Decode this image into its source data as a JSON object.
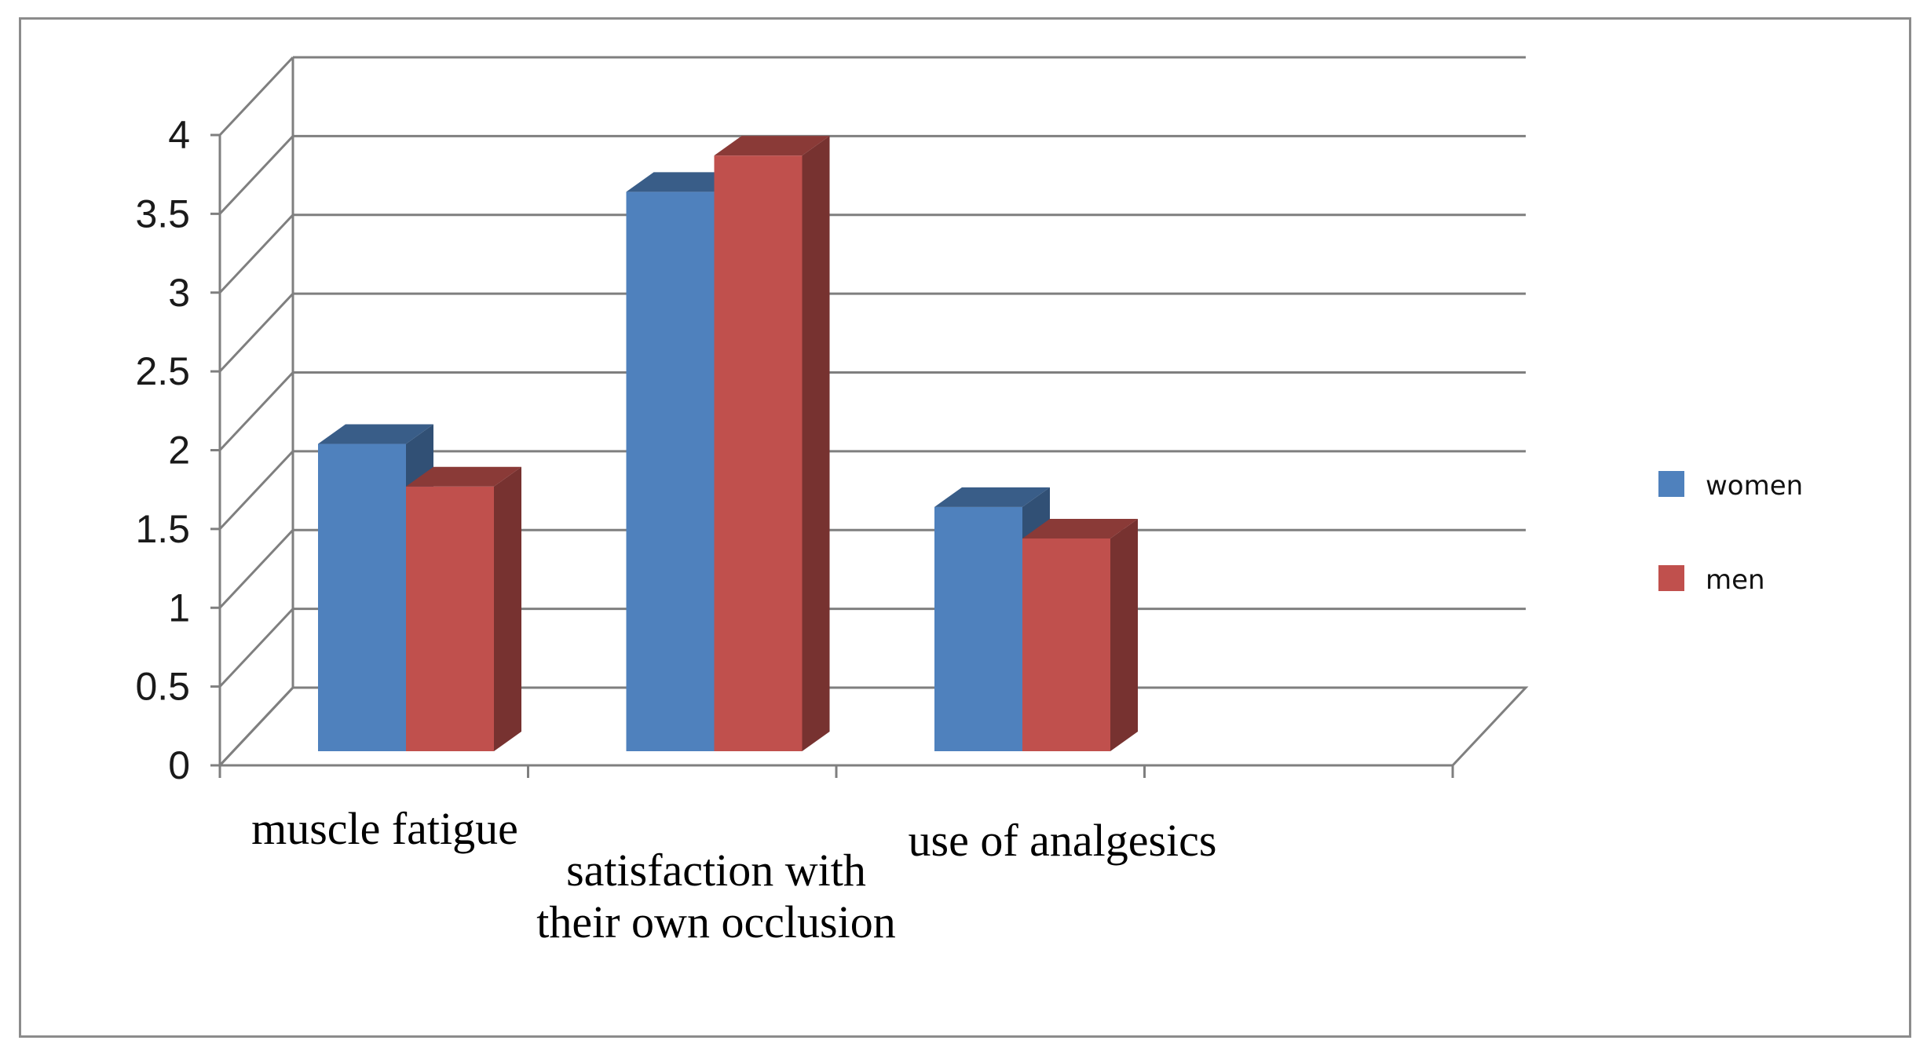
{
  "chart_data": {
    "type": "bar",
    "title": "",
    "xlabel": "",
    "ylabel": "",
    "categories": [
      [
        "muscle fatigue"
      ],
      [
        "satisfaction with",
        "their own occlusion"
      ],
      [
        "use of analgesics"
      ]
    ],
    "series": [
      {
        "name": "women",
        "values": [
          1.95,
          3.55,
          1.55
        ],
        "color": "#4f81bd"
      },
      {
        "name": "men",
        "values": [
          1.68,
          3.78,
          1.35
        ],
        "color": "#c0504d"
      }
    ],
    "ylim": [
      0,
      4
    ],
    "yticks": [
      "0",
      "0.5",
      "1",
      "1.5",
      "2",
      "2.5",
      "3",
      "3.5",
      "4"
    ],
    "grid": true,
    "style": "3d-clustered-column",
    "legend": "right"
  }
}
